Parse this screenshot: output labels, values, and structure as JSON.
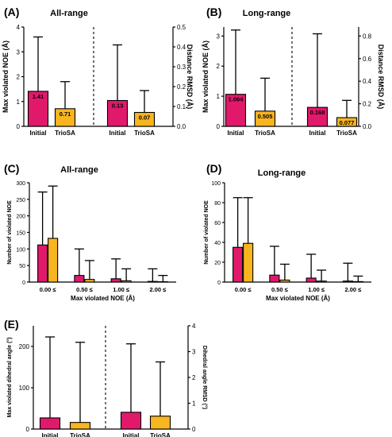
{
  "colors": {
    "initial": "#e0196b",
    "triosa": "#f7b520",
    "axis": "#000000"
  },
  "chart_data": [
    {
      "id": "A",
      "panel_label": "(A)",
      "title": "All-range",
      "type": "bar",
      "categories": [
        "Initial",
        "TrioSA",
        "Initial",
        "TrioSA"
      ],
      "left_group": {
        "axis_label": "Max violated NOE (Å)",
        "ylim": [
          0,
          4
        ],
        "ticks": [
          "0",
          "1",
          "2",
          "3",
          "4"
        ],
        "values": [
          1.41,
          0.71
        ],
        "errors": [
          3.6,
          1.8
        ],
        "labels": [
          "1.41",
          "0.71"
        ]
      },
      "right_group": {
        "axis_label": "Distance RMSD (Å)",
        "ylim": [
          0,
          0.5
        ],
        "ticks": [
          "0.0",
          "0.1",
          "0.2",
          "0.3",
          "0.4",
          "0.5"
        ],
        "values": [
          0.13,
          0.07
        ],
        "errors": [
          0.41,
          0.18
        ],
        "labels": [
          "0.13",
          "0.07"
        ]
      }
    },
    {
      "id": "B",
      "panel_label": "(B)",
      "title": "Long-range",
      "type": "bar",
      "categories": [
        "Initial",
        "TrioSA",
        "Initial",
        "TrioSA"
      ],
      "left_group": {
        "axis_label": "Max violated NOE (Å)",
        "ylim": [
          0,
          3.3
        ],
        "ticks": [
          "0",
          "1",
          "2",
          "3"
        ],
        "values": [
          1.064,
          0.505
        ],
        "errors": [
          3.2,
          1.6
        ],
        "labels": [
          "1.064",
          "0.505"
        ]
      },
      "right_group": {
        "axis_label": "Distance RMSD (Å)",
        "ylim": [
          0,
          0.88
        ],
        "ticks": [
          "0.0",
          "0.2",
          "0.4",
          "0.6",
          "0.8"
        ],
        "values": [
          0.168,
          0.077
        ],
        "errors": [
          0.82,
          0.23
        ],
        "labels": [
          "0.168",
          "0.077"
        ]
      }
    },
    {
      "id": "C",
      "panel_label": "(C)",
      "title": "All-range",
      "type": "bar",
      "xlabel": "Max violated NOE (Å)",
      "ylabel": "Number of violated NOE",
      "ylim": [
        0,
        300
      ],
      "ticks": [
        "0",
        "50",
        "100",
        "150",
        "200",
        "250",
        "300"
      ],
      "categories": [
        "0.00 ≤",
        "0.50 ≤",
        "1.00 ≤",
        "2.00 ≤"
      ],
      "series": [
        {
          "values": [
            112,
            20,
            10,
            2
          ],
          "errors": [
            272,
            100,
            70,
            40
          ]
        },
        {
          "values": [
            132,
            8,
            4,
            1
          ],
          "errors": [
            290,
            65,
            40,
            20
          ]
        }
      ]
    },
    {
      "id": "D",
      "panel_label": "(D)",
      "title": "Long-range",
      "type": "bar",
      "xlabel": "Max violated NOE (Å)",
      "ylabel": "Number of violated NOE",
      "ylim": [
        0,
        100
      ],
      "ticks": [
        "0",
        "20",
        "40",
        "60",
        "80",
        "100"
      ],
      "categories": [
        "0.00 ≤",
        "0.50 ≤",
        "1.00 ≤",
        "2.00 ≤"
      ],
      "series": [
        {
          "values": [
            35,
            7,
            4,
            1
          ],
          "errors": [
            85,
            36,
            28,
            19
          ]
        },
        {
          "values": [
            39,
            2,
            1,
            0.5
          ],
          "errors": [
            85,
            18,
            12,
            6
          ]
        }
      ]
    },
    {
      "id": "E",
      "panel_label": "(E)",
      "type": "bar",
      "categories": [
        "Initial",
        "TrioSA",
        "Initial",
        "TrioSA"
      ],
      "left_group": {
        "axis_label": "Max violated dihedral angle (°)",
        "ylim": [
          0,
          250
        ],
        "ticks": [
          "0",
          "100",
          "200"
        ],
        "values": [
          27,
          16
        ],
        "errors": [
          223,
          210
        ],
        "labels": []
      },
      "right_group": {
        "axis_label": "Dihedral angle RMSD (°)",
        "ylim": [
          0,
          4
        ],
        "ticks": [
          "0",
          "1",
          "2",
          "3",
          "4"
        ],
        "values": [
          0.65,
          0.5
        ],
        "errors": [
          3.3,
          2.6
        ],
        "labels": []
      }
    }
  ]
}
